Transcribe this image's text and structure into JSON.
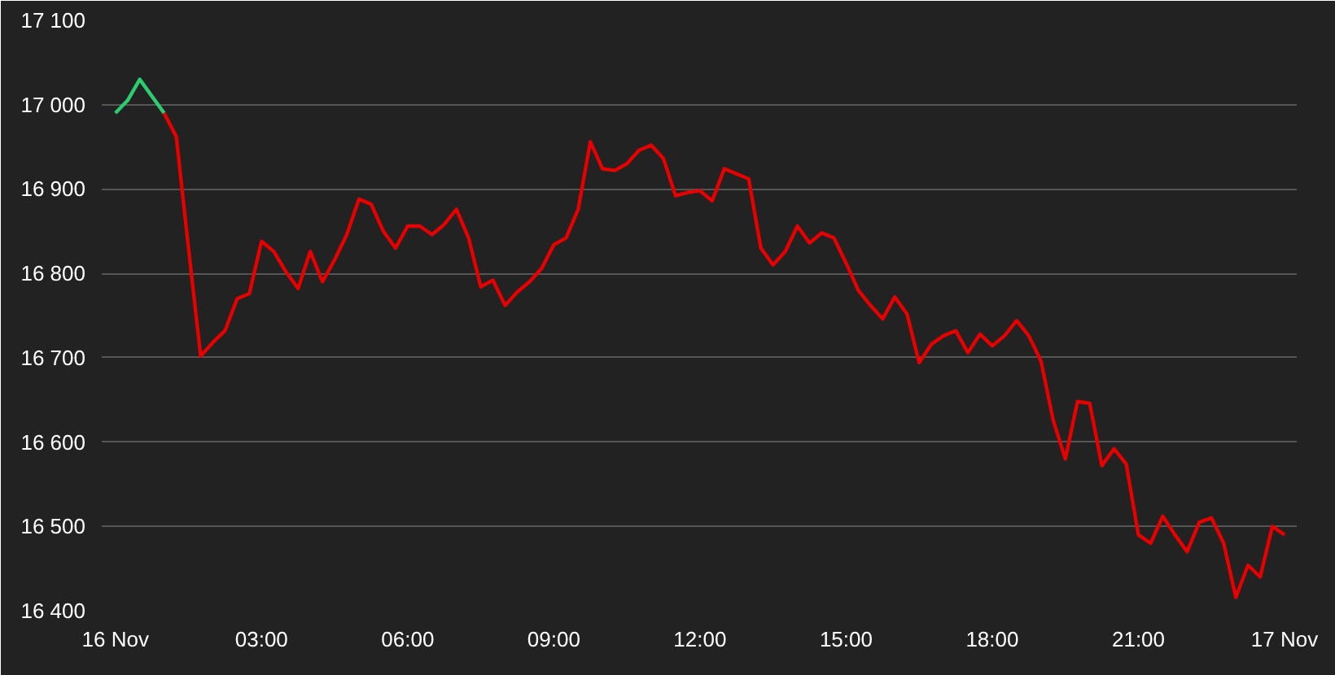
{
  "chart_data": {
    "type": "line",
    "xlim": [
      -0.28,
      24.25
    ],
    "ylim": [
      16400,
      17100
    ],
    "xticks": [
      {
        "value": 0,
        "label": "16 Nov"
      },
      {
        "value": 3,
        "label": "03:00"
      },
      {
        "value": 6,
        "label": "06:00"
      },
      {
        "value": 9,
        "label": "09:00"
      },
      {
        "value": 12,
        "label": "12:00"
      },
      {
        "value": 15,
        "label": "15:00"
      },
      {
        "value": 18,
        "label": "18:00"
      },
      {
        "value": 21,
        "label": "21:00"
      },
      {
        "value": 24,
        "label": "17 Nov"
      }
    ],
    "yticks": [
      {
        "value": 16400,
        "label": "16 400"
      },
      {
        "value": 16500,
        "label": "16 500"
      },
      {
        "value": 16600,
        "label": "16 600"
      },
      {
        "value": 16700,
        "label": "16 700"
      },
      {
        "value": 16800,
        "label": "16 800"
      },
      {
        "value": 16900,
        "label": "16 900"
      },
      {
        "value": 17000,
        "label": "17 000"
      },
      {
        "value": 17100,
        "label": "17 100"
      }
    ],
    "grid": "y",
    "marker": "none",
    "line_style": "solid",
    "series": [
      {
        "color": "#2ecc71",
        "x": [
          0,
          0.25,
          0.5,
          0.75,
          1.0
        ],
        "values": [
          16990,
          17005,
          17030,
          17010,
          16990
        ]
      },
      {
        "color": "#e60000",
        "x": [
          1.0,
          1.25,
          1.5,
          1.75,
          2.0,
          2.25,
          2.5,
          2.75,
          3.0,
          3.25,
          3.5,
          3.75,
          4.0,
          4.25,
          4.5,
          4.75,
          5.0,
          5.25,
          5.5,
          5.75,
          6.0,
          6.25,
          6.5,
          6.75,
          7.0,
          7.25,
          7.5,
          7.75,
          8.0,
          8.25,
          8.5,
          8.75,
          9.0,
          9.25,
          9.5,
          9.75,
          10.0,
          10.25,
          10.5,
          10.75,
          11.0,
          11.25,
          11.5,
          11.75,
          12.0,
          12.25,
          12.5,
          12.75,
          13.0,
          13.25,
          13.5,
          13.75,
          14.0,
          14.25,
          14.5,
          14.75,
          15.0,
          15.25,
          15.5,
          15.75,
          16.0,
          16.25,
          16.5,
          16.75,
          17.0,
          17.25,
          17.5,
          17.75,
          18.0,
          18.25,
          18.5,
          18.75,
          19.0,
          19.25,
          19.5,
          19.75,
          20.0,
          20.25,
          20.5,
          20.75,
          21.0,
          21.25,
          21.5,
          21.75,
          22.0,
          22.25,
          22.5,
          22.75,
          23.0,
          23.25,
          23.5,
          23.75,
          24.0
        ],
        "values": [
          16990,
          16962,
          16830,
          16702,
          16718,
          16732,
          16770,
          16776,
          16838,
          16826,
          16802,
          16782,
          16826,
          16790,
          16816,
          16846,
          16888,
          16882,
          16850,
          16830,
          16856,
          16856,
          16846,
          16858,
          16876,
          16842,
          16784,
          16792,
          16762,
          16778,
          16790,
          16806,
          16834,
          16842,
          16876,
          16956,
          16924,
          16922,
          16930,
          16946,
          16952,
          16936,
          16892,
          16896,
          16898,
          16886,
          16924,
          16918,
          16912,
          16830,
          16810,
          16826,
          16856,
          16836,
          16848,
          16842,
          16812,
          16780,
          16762,
          16746,
          16772,
          16752,
          16694,
          16716,
          16726,
          16732,
          16706,
          16728,
          16714,
          16726,
          16744,
          16726,
          16696,
          16626,
          16580,
          16648,
          16646,
          16572,
          16592,
          16574,
          16490,
          16480,
          16512,
          16490,
          16470,
          16505,
          16510,
          16480,
          16416,
          16454,
          16440,
          16500,
          16490
        ]
      }
    ]
  }
}
